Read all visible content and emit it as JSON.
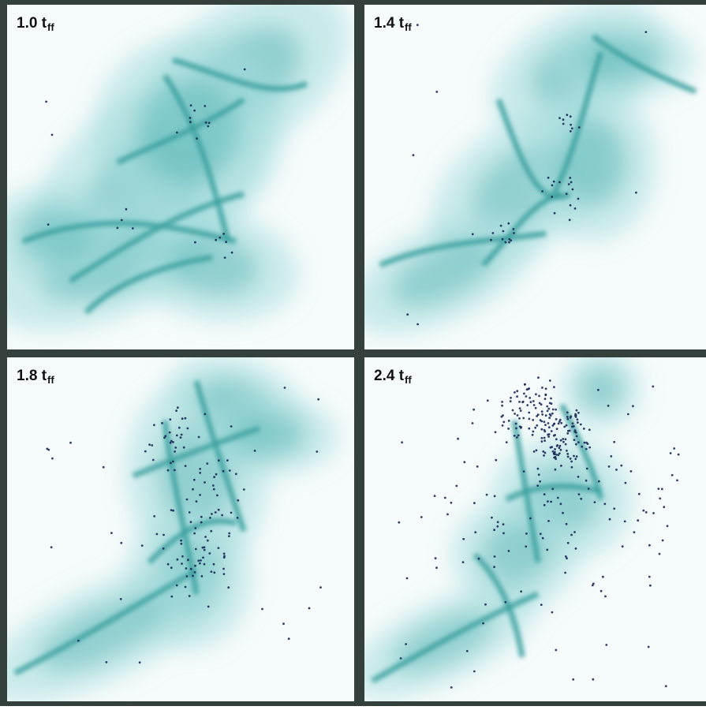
{
  "figure": {
    "panels": [
      {
        "time": "1.0",
        "unit": "t",
        "subscript": "ff",
        "seed": 11,
        "stars": 25
      },
      {
        "time": "1.4",
        "unit": "t",
        "subscript": "ff",
        "seed": 23,
        "stars": 45
      },
      {
        "time": "1.8",
        "unit": "t",
        "subscript": "ff",
        "seed": 37,
        "stars": 140
      },
      {
        "time": "2.4",
        "unit": "t",
        "subscript": "ff",
        "seed": 51,
        "stars": 320
      }
    ]
  },
  "colors": {
    "gas_light": "#a6dcdc",
    "gas_mid": "#4fb2b1",
    "gas_dark": "#1f8a8a",
    "star": "#1c2a5a",
    "background": "#f6fbfb",
    "frame": "#33403b"
  }
}
